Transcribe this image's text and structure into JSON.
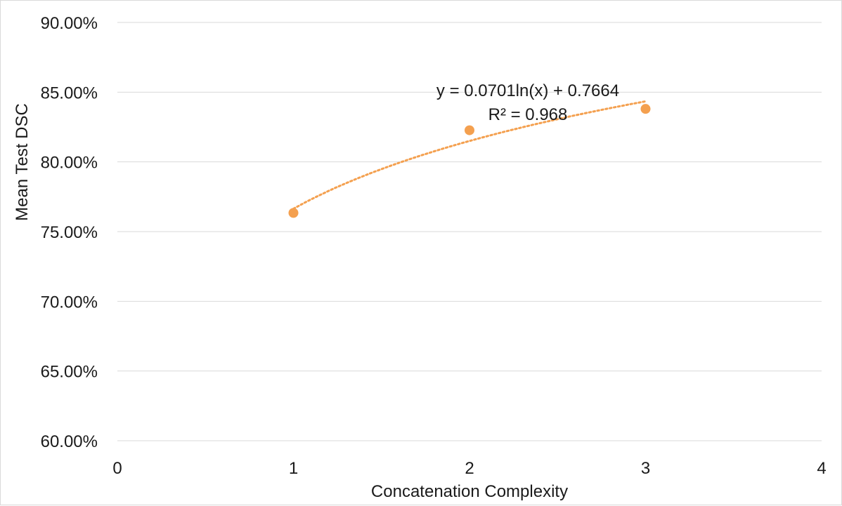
{
  "chart_data": {
    "type": "scatter",
    "xlabel": "Concatenation Complexity",
    "ylabel": "Mean Test DSC",
    "xlim": [
      0,
      4
    ],
    "ylim": [
      0.6,
      0.9
    ],
    "x_ticks": [
      0,
      1,
      2,
      3,
      4
    ],
    "x_tick_labels": [
      "0",
      "1",
      "2",
      "3",
      "4"
    ],
    "y_ticks": [
      0.6,
      0.65,
      0.7,
      0.75,
      0.8,
      0.85,
      0.9
    ],
    "y_tick_labels": [
      "60.00%",
      "65.00%",
      "70.00%",
      "75.00%",
      "80.00%",
      "85.00%",
      "90.00%"
    ],
    "grid": "horizontal",
    "series": [
      {
        "color": "#f4a04f",
        "x": [
          1,
          2,
          3
        ],
        "y": [
          0.7634,
          0.8227,
          0.838
        ]
      }
    ],
    "trendline": {
      "type": "logarithmic",
      "coefficient": 0.0701,
      "intercept": 0.7664,
      "color": "#f4a04f",
      "x_range": [
        1,
        3
      ],
      "equation_label": "y = 0.0701ln(x) + 0.7664",
      "r2_label": "R² = 0.968"
    }
  }
}
